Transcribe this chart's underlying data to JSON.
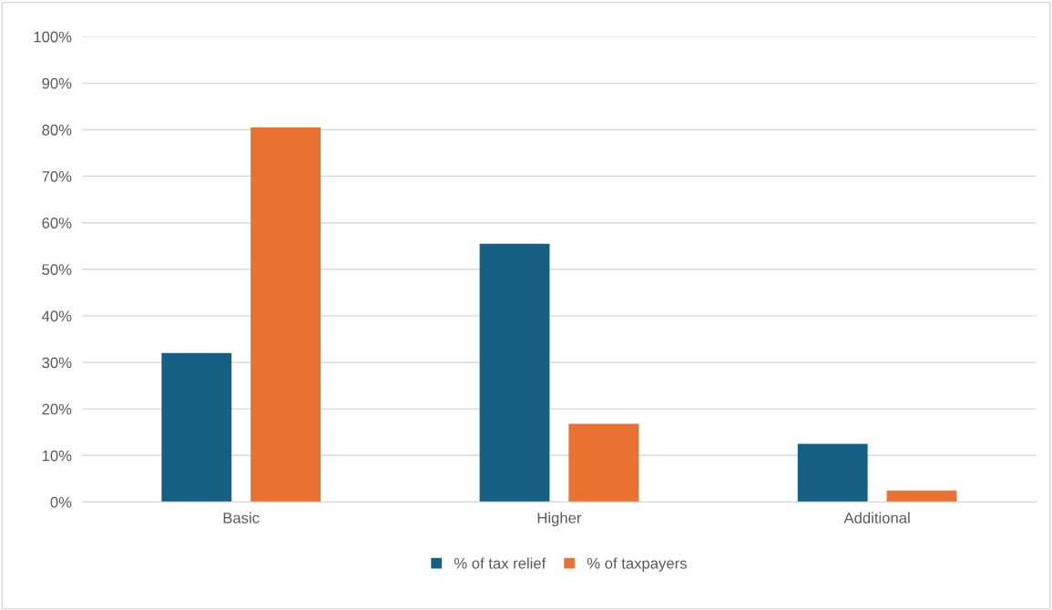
{
  "chart_data": {
    "type": "bar",
    "categories": [
      "Basic",
      "Higher",
      "Additional"
    ],
    "series": [
      {
        "name": "% of tax relief",
        "color": "#156082",
        "values": [
          32,
          55.5,
          12.5
        ]
      },
      {
        "name": "% of taxpayers",
        "color": "#e97132",
        "values": [
          80.5,
          16.8,
          2.5
        ]
      }
    ],
    "ylim": [
      0,
      100
    ],
    "yticks": [
      {
        "value": 0,
        "label": "0%"
      },
      {
        "value": 10,
        "label": "10%"
      },
      {
        "value": 20,
        "label": "20%"
      },
      {
        "value": 30,
        "label": "30%"
      },
      {
        "value": 40,
        "label": "40%"
      },
      {
        "value": 50,
        "label": "50%"
      },
      {
        "value": 60,
        "label": "60%"
      },
      {
        "value": 70,
        "label": "70%"
      },
      {
        "value": 80,
        "label": "80%"
      },
      {
        "value": 90,
        "label": "90%"
      },
      {
        "value": 100,
        "label": "100%"
      }
    ],
    "grid": "y",
    "legend": "bottom"
  }
}
